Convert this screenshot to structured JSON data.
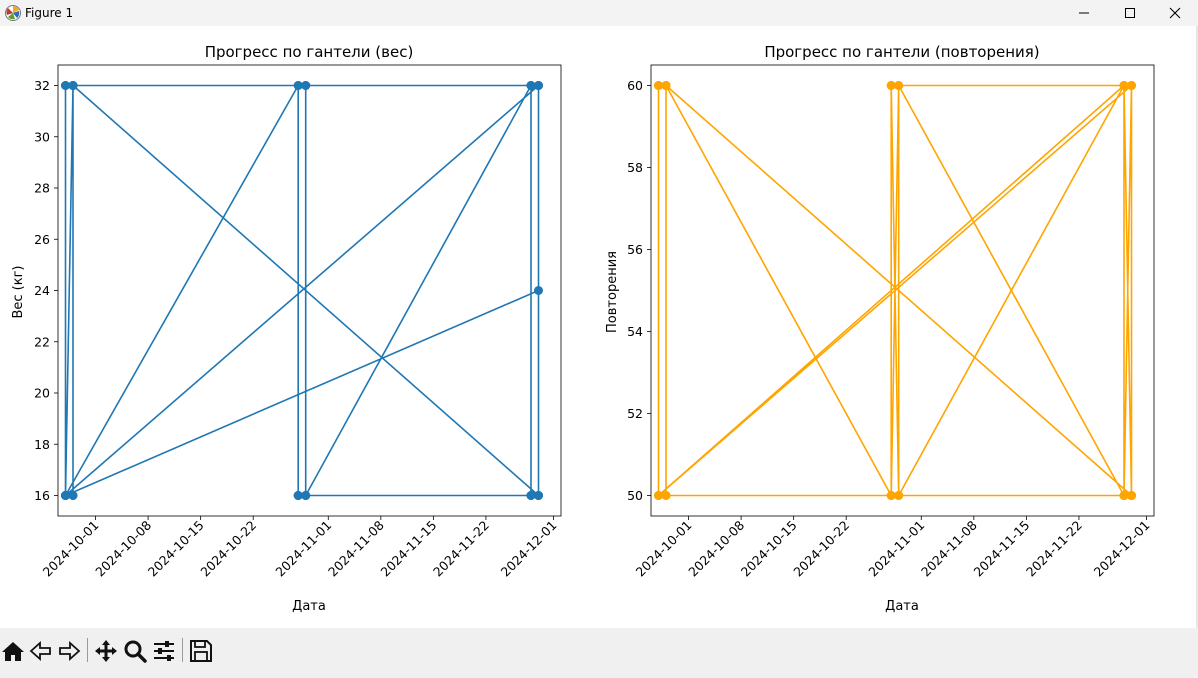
{
  "window": {
    "title": "Figure 1",
    "controls": [
      "minimize",
      "maximize",
      "close"
    ]
  },
  "toolbar": {
    "buttons": [
      {
        "icon": "home-icon",
        "action": "home"
      },
      {
        "icon": "back-arrow-icon",
        "action": "back"
      },
      {
        "icon": "forward-arrow-icon",
        "action": "forward"
      },
      {
        "icon": "pan-move-icon",
        "action": "pan"
      },
      {
        "icon": "zoom-magnifier-icon",
        "action": "zoom"
      },
      {
        "icon": "sliders-icon",
        "action": "configure-subplots"
      },
      {
        "icon": "save-floppy-icon",
        "action": "save"
      }
    ]
  },
  "chart_data": [
    {
      "type": "line",
      "title": "Прогресс по гантели (вес)",
      "xlabel": "Дата",
      "ylabel": "Вес (кг)",
      "color": "#1f77b4",
      "marker": "circle",
      "grid": false,
      "xlim": [
        "2024-09-26",
        "2024-12-02"
      ],
      "ylim": [
        15.2,
        32.8
      ],
      "xticks": [
        "2024-10-01",
        "2024-10-08",
        "2024-10-15",
        "2024-10-22",
        "2024-11-01",
        "2024-11-08",
        "2024-11-15",
        "2024-11-22",
        "2024-12-01"
      ],
      "yticks": [
        16,
        18,
        20,
        22,
        24,
        26,
        28,
        30,
        32
      ],
      "series": [
        {
          "x": [
            "2024-09-27",
            "2024-09-27",
            "2024-09-28",
            "2024-09-28",
            "2024-09-27",
            "2024-09-28",
            "2024-09-28",
            "2024-09-27",
            "2024-09-28",
            "2024-11-29",
            "2024-11-29",
            "2024-11-28",
            "2024-11-28",
            "2024-10-28",
            "2024-10-28",
            "2024-10-29",
            "2024-10-29",
            "2024-10-28",
            "2024-10-29",
            "2024-11-28",
            "2024-11-28",
            "2024-11-29",
            "2024-11-29",
            "2024-09-28",
            "2024-09-27",
            "2024-10-28",
            "2024-10-28",
            "2024-10-29",
            "2024-10-29",
            "2024-11-28",
            "2024-11-28",
            "2024-11-29",
            "2024-11-29",
            "2024-09-27",
            "2024-11-29"
          ],
          "y": [
            32,
            16,
            16,
            32,
            32,
            32,
            16,
            16,
            32,
            16,
            32,
            32,
            16,
            16,
            32,
            32,
            16,
            16,
            16,
            32,
            16,
            16,
            32,
            32,
            16,
            32,
            16,
            16,
            32,
            32,
            16,
            16,
            32,
            16,
            24
          ]
        }
      ]
    },
    {
      "type": "line",
      "title": "Прогресс по гантели (повторения)",
      "xlabel": "Дата",
      "ylabel": "Повторения",
      "color": "#ffa500",
      "marker": "circle",
      "grid": false,
      "xlim": [
        "2024-09-26",
        "2024-12-02"
      ],
      "ylim": [
        49.5,
        60.5
      ],
      "xticks": [
        "2024-10-01",
        "2024-10-08",
        "2024-10-15",
        "2024-10-22",
        "2024-11-01",
        "2024-11-08",
        "2024-11-15",
        "2024-11-22",
        "2024-12-01"
      ],
      "yticks": [
        50,
        52,
        54,
        56,
        58,
        60
      ],
      "series": [
        {
          "x": [
            "2024-09-27",
            "2024-09-27",
            "2024-09-28",
            "2024-09-28",
            "2024-09-27",
            "2024-09-28",
            "2024-09-28",
            "2024-09-27",
            "2024-11-28",
            "2024-11-28",
            "2024-11-29",
            "2024-11-29",
            "2024-10-28",
            "2024-10-28",
            "2024-10-29",
            "2024-10-29",
            "2024-11-28",
            "2024-11-28",
            "2024-11-29",
            "2024-11-29",
            "2024-09-28",
            "2024-10-28",
            "2024-10-29",
            "2024-10-28",
            "2024-10-29",
            "2024-11-28",
            "2024-11-29",
            "2024-11-28",
            "2024-11-29",
            "2024-09-27",
            "2024-11-29"
          ],
          "y": [
            60,
            50,
            50,
            60,
            60,
            60,
            50,
            50,
            60,
            50,
            50,
            60,
            60,
            50,
            50,
            60,
            50,
            60,
            60,
            50,
            60,
            50,
            60,
            60,
            50,
            60,
            50,
            50,
            60,
            50,
            50
          ]
        }
      ]
    }
  ]
}
